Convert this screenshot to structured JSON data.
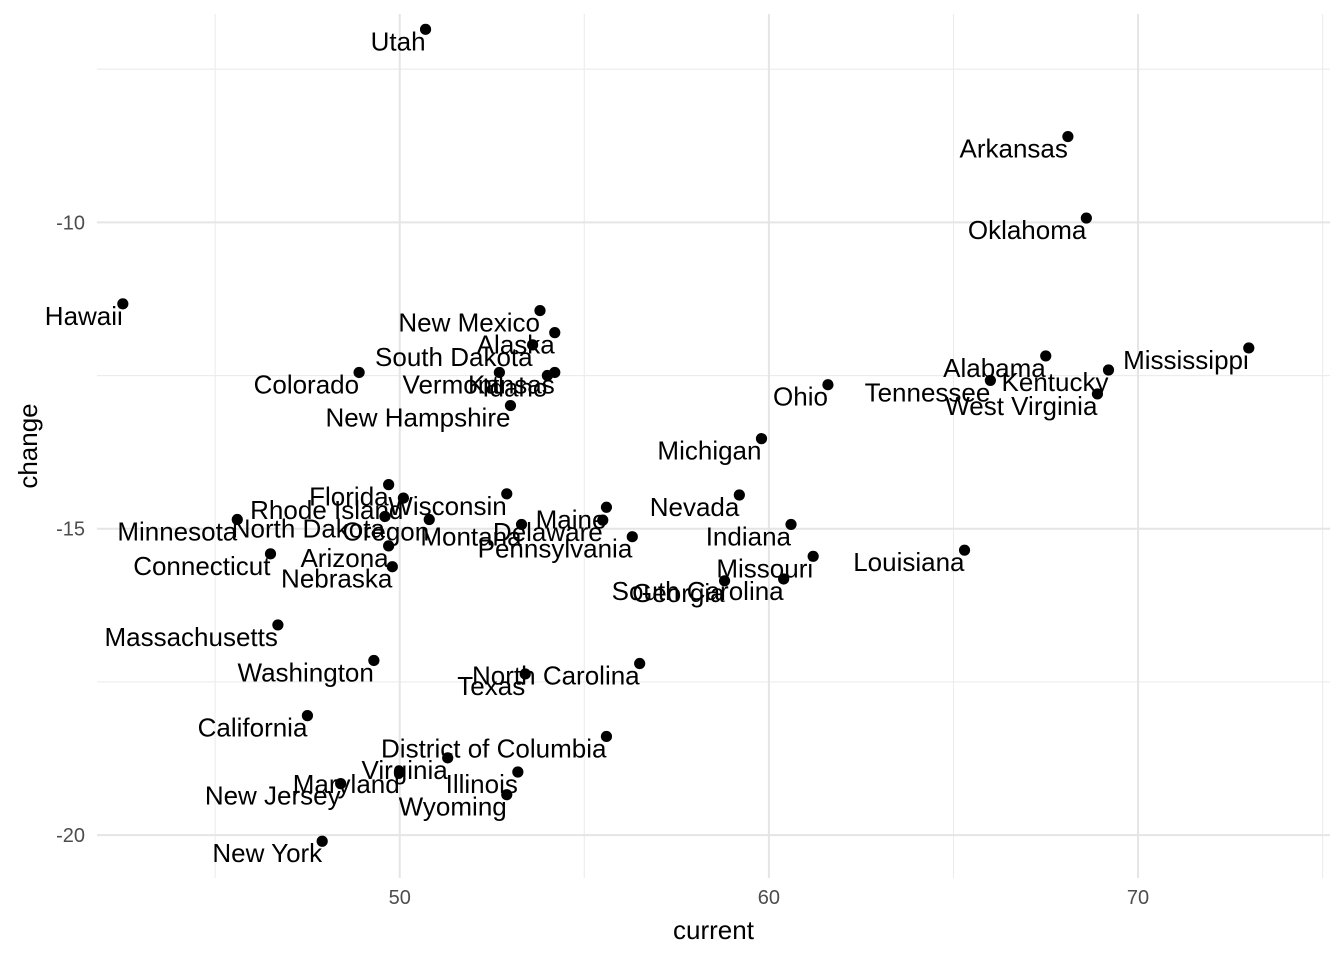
{
  "chart_data": {
    "type": "scatter",
    "title": "",
    "xlabel": "current",
    "ylabel": "change",
    "xlim": [
      41.8,
      75.2
    ],
    "ylim": [
      -20.7,
      -6.6
    ],
    "x_ticks": [
      50,
      60,
      70
    ],
    "y_ticks": [
      -10,
      -15,
      -20
    ],
    "grid": true,
    "points": [
      {
        "label": "Utah",
        "x": 50.7,
        "y": -6.85
      },
      {
        "label": "Arkansas",
        "x": 68.1,
        "y": -8.6
      },
      {
        "label": "Oklahoma",
        "x": 68.6,
        "y": -9.93
      },
      {
        "label": "Hawaii",
        "x": 42.5,
        "y": -11.33
      },
      {
        "label": "New Mexico",
        "x": 53.8,
        "y": -11.44
      },
      {
        "label": "Alaska",
        "x": 54.2,
        "y": -11.8
      },
      {
        "label": "South Dakota",
        "x": 53.6,
        "y": -12.0
      },
      {
        "label": "Kansas",
        "x": 54.2,
        "y": -12.45
      },
      {
        "label": "Vermont",
        "x": 52.7,
        "y": -12.45
      },
      {
        "label": "Idaho",
        "x": 54.0,
        "y": -12.5
      },
      {
        "label": "Colorado",
        "x": 48.9,
        "y": -12.45
      },
      {
        "label": "New Hampshire",
        "x": 53.0,
        "y": -12.99
      },
      {
        "label": "Mississippi",
        "x": 73.0,
        "y": -12.05
      },
      {
        "label": "Alabama",
        "x": 67.5,
        "y": -12.18
      },
      {
        "label": "Kentucky",
        "x": 69.2,
        "y": -12.41
      },
      {
        "label": "Tennessee",
        "x": 66.0,
        "y": -12.58
      },
      {
        "label": "West Virginia",
        "x": 68.9,
        "y": -12.8
      },
      {
        "label": "Ohio",
        "x": 61.6,
        "y": -12.65
      },
      {
        "label": "Michigan",
        "x": 59.8,
        "y": -13.53
      },
      {
        "label": "Florida",
        "x": 49.7,
        "y": -14.28
      },
      {
        "label": "Wisconsin",
        "x": 52.9,
        "y": -14.43
      },
      {
        "label": "Rhode Island",
        "x": 50.1,
        "y": -14.5
      },
      {
        "label": "Nevada",
        "x": 59.2,
        "y": -14.45
      },
      {
        "label": "Maine",
        "x": 55.6,
        "y": -14.65
      },
      {
        "label": "North Dakota",
        "x": 49.6,
        "y": -14.8
      },
      {
        "label": "Minnesota",
        "x": 45.6,
        "y": -14.85
      },
      {
        "label": "Oregon",
        "x": 50.8,
        "y": -14.85
      },
      {
        "label": "Delaware",
        "x": 55.5,
        "y": -14.86
      },
      {
        "label": "Montana",
        "x": 53.3,
        "y": -14.93
      },
      {
        "label": "Indiana",
        "x": 60.6,
        "y": -14.93
      },
      {
        "label": "Pennsylvania",
        "x": 56.3,
        "y": -15.13
      },
      {
        "label": "Arizona",
        "x": 49.7,
        "y": -15.28
      },
      {
        "label": "Connecticut",
        "x": 46.5,
        "y": -15.41
      },
      {
        "label": "Louisiana",
        "x": 65.3,
        "y": -15.35
      },
      {
        "label": "Missouri",
        "x": 61.2,
        "y": -15.45
      },
      {
        "label": "Nebraska",
        "x": 49.8,
        "y": -15.62
      },
      {
        "label": "South Carolina",
        "x": 60.4,
        "y": -15.82
      },
      {
        "label": "Georgia",
        "x": 58.8,
        "y": -15.85
      },
      {
        "label": "Massachusetts",
        "x": 46.7,
        "y": -16.57
      },
      {
        "label": "North Carolina",
        "x": 56.5,
        "y": -17.2
      },
      {
        "label": "Washington",
        "x": 49.3,
        "y": -17.15
      },
      {
        "label": "Texas",
        "x": 53.4,
        "y": -17.37
      },
      {
        "label": "California",
        "x": 47.5,
        "y": -18.05
      },
      {
        "label": "District of Columbia",
        "x": 55.6,
        "y": -18.39
      },
      {
        "label": "Virginia",
        "x": 51.3,
        "y": -18.74
      },
      {
        "label": "Illinois",
        "x": 53.2,
        "y": -18.97
      },
      {
        "label": "Maryland",
        "x": 50.0,
        "y": -18.97
      },
      {
        "label": "New Jersey",
        "x": 48.4,
        "y": -19.16
      },
      {
        "label": "Wyoming",
        "x": 52.9,
        "y": -19.34
      },
      {
        "label": "New York",
        "x": 47.9,
        "y": -20.1
      }
    ]
  }
}
